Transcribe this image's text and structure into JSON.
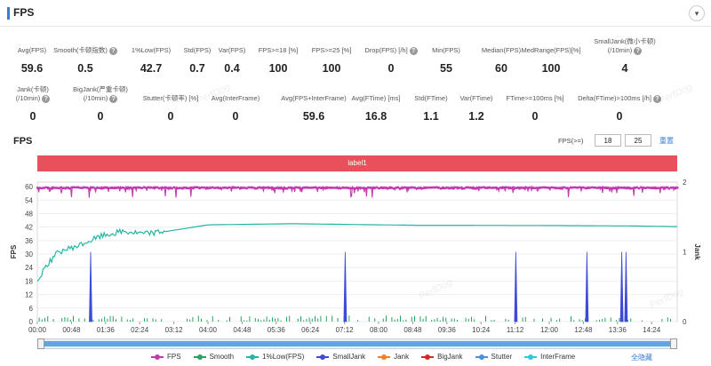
{
  "header": {
    "title": "FPS",
    "collapse_icon": "▾"
  },
  "metrics_row1": [
    {
      "label": "Avg(FPS)",
      "value": "59.6",
      "help": false
    },
    {
      "label": "Smooth(卡顿指数)",
      "value": "0.5",
      "help": true
    },
    {
      "label": "1%Low(FPS)",
      "value": "42.7",
      "help": false
    },
    {
      "label": "Std(FPS)",
      "value": "0.7",
      "help": false
    },
    {
      "label": "Var(FPS)",
      "value": "0.4",
      "help": false
    },
    {
      "label": "FPS>=18 [%]",
      "value": "100",
      "help": false
    },
    {
      "label": "FPS>=25 [%]",
      "value": "100",
      "help": false
    },
    {
      "label": "Drop(FPS) [/h]",
      "value": "0",
      "help": true
    },
    {
      "label": "Min(FPS)",
      "value": "55",
      "help": false
    },
    {
      "label": "Median(FPS)",
      "value": "60",
      "help": false
    },
    {
      "label": "MedRange(FPS)[%]",
      "value": "100",
      "help": false
    },
    {
      "label": "SmallJank(微小卡顿)",
      "label2": "(/10min)",
      "value": "4",
      "help": true
    }
  ],
  "metrics_row2": [
    {
      "label": "Jank(卡顿)",
      "label2": "(/10min)",
      "value": "0",
      "help": true
    },
    {
      "label": "BigJank(严重卡顿)",
      "label2": "(/10min)",
      "value": "0",
      "help": true
    },
    {
      "label": "Stutter(卡顿率) [%]",
      "value": "0",
      "help": false
    },
    {
      "label": "Avg(InterFrame)",
      "value": "0",
      "help": false
    },
    {
      "label": "Avg(FPS+InterFrame)",
      "value": "59.6",
      "help": false
    },
    {
      "label": "Avg(FTime) [ms]",
      "value": "16.8",
      "help": false
    },
    {
      "label": "Std(FTime)",
      "value": "1.1",
      "help": false
    },
    {
      "label": "Var(FTime)",
      "value": "1.2",
      "help": false
    },
    {
      "label": "FTime>=100ms [%]",
      "value": "0",
      "help": false
    },
    {
      "label": "Delta(FTime)>100ms [/h]",
      "value": "0",
      "help": true
    }
  ],
  "chart_section": {
    "title": "FPS",
    "threshold_label": "FPS(>=)",
    "threshold_low": "18",
    "threshold_high": "25",
    "reset_label": "重置",
    "label_bar": "label1",
    "watermark": "PerfDog",
    "hide_all_label": "全隐藏"
  },
  "chart_data": {
    "type": "line",
    "ylabel": "FPS",
    "y2label": "Jank",
    "y_ticks": [
      0,
      6,
      12,
      18,
      24,
      30,
      36,
      42,
      48,
      54,
      60
    ],
    "ylim": [
      0,
      62
    ],
    "y2_ticks": [
      0,
      1,
      2
    ],
    "y2lim": [
      0,
      2
    ],
    "x_ticks": [
      "00:00",
      "00:48",
      "01:36",
      "02:24",
      "03:12",
      "04:00",
      "04:48",
      "05:36",
      "06:24",
      "07:12",
      "08:00",
      "08:48",
      "09:36",
      "10:24",
      "11:12",
      "12:00",
      "12:48",
      "13:36",
      "14:24"
    ],
    "xlim_seconds": [
      0,
      900
    ],
    "series": [
      {
        "name": "FPS",
        "color": "#c238b0",
        "summary": "≈59–60 throughout; occasional dips to 55–58"
      },
      {
        "name": "Smooth",
        "color": "#2ca25f",
        "summary": "small bars 0–3 scattered"
      },
      {
        "name": "1%Low(FPS)",
        "color": "#26b5a5",
        "points": [
          [
            0,
            17
          ],
          [
            10,
            24
          ],
          [
            30,
            31
          ],
          [
            60,
            34
          ],
          [
            90,
            38
          ],
          [
            120,
            40
          ],
          [
            150,
            39
          ],
          [
            180,
            40
          ],
          [
            240,
            43
          ],
          [
            360,
            43.5
          ],
          [
            480,
            43
          ],
          [
            540,
            42.8
          ],
          [
            600,
            42.8
          ],
          [
            720,
            42.7
          ],
          [
            840,
            42.5
          ],
          [
            900,
            42.2
          ]
        ]
      },
      {
        "name": "SmallJank",
        "color": "#3d4bd6",
        "spikes_seconds": [
          75,
          433,
          673,
          773,
          822,
          828
        ]
      },
      {
        "name": "Jank",
        "color": "#f07e2a",
        "values": []
      },
      {
        "name": "BigJank",
        "color": "#d62728",
        "values": []
      },
      {
        "name": "Stutter",
        "color": "#4b8fe0",
        "values": []
      },
      {
        "name": "InterFrame",
        "color": "#2ec9e0",
        "values": []
      }
    ]
  }
}
